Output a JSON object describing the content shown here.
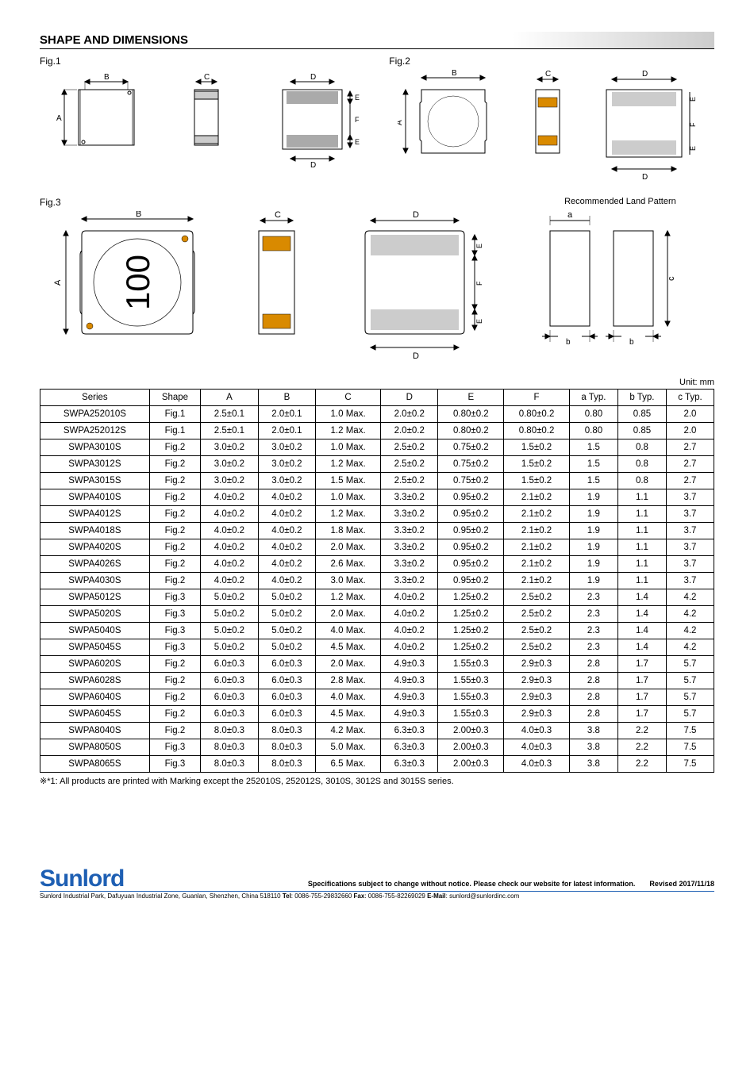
{
  "title": "SHAPE AND DIMENSIONS",
  "fig1_label": "Fig.1",
  "fig2_label": "Fig.2",
  "fig3_label": "Fig.3",
  "land_label": "Recommended Land Pattern",
  "unit_label": "Unit: mm",
  "marking_text": "100",
  "table": {
    "headers": [
      "Series",
      "Shape",
      "A",
      "B",
      "C",
      "D",
      "E",
      "F",
      "a Typ.",
      "b Typ.",
      "c Typ."
    ],
    "rows": [
      [
        "SWPA252010S",
        "Fig.1",
        "2.5±0.1",
        "2.0±0.1",
        "1.0 Max.",
        "2.0±0.2",
        "0.80±0.2",
        "0.80±0.2",
        "0.80",
        "0.85",
        "2.0"
      ],
      [
        "SWPA252012S",
        "Fig.1",
        "2.5±0.1",
        "2.0±0.1",
        "1.2 Max.",
        "2.0±0.2",
        "0.80±0.2",
        "0.80±0.2",
        "0.80",
        "0.85",
        "2.0"
      ],
      [
        "SWPA3010S",
        "Fig.2",
        "3.0±0.2",
        "3.0±0.2",
        "1.0 Max.",
        "2.5±0.2",
        "0.75±0.2",
        "1.5±0.2",
        "1.5",
        "0.8",
        "2.7"
      ],
      [
        "SWPA3012S",
        "Fig.2",
        "3.0±0.2",
        "3.0±0.2",
        "1.2 Max.",
        "2.5±0.2",
        "0.75±0.2",
        "1.5±0.2",
        "1.5",
        "0.8",
        "2.7"
      ],
      [
        "SWPA3015S",
        "Fig.2",
        "3.0±0.2",
        "3.0±0.2",
        "1.5 Max.",
        "2.5±0.2",
        "0.75±0.2",
        "1.5±0.2",
        "1.5",
        "0.8",
        "2.7"
      ],
      [
        "SWPA4010S",
        "Fig.2",
        "4.0±0.2",
        "4.0±0.2",
        "1.0 Max.",
        "3.3±0.2",
        "0.95±0.2",
        "2.1±0.2",
        "1.9",
        "1.1",
        "3.7"
      ],
      [
        "SWPA4012S",
        "Fig.2",
        "4.0±0.2",
        "4.0±0.2",
        "1.2 Max.",
        "3.3±0.2",
        "0.95±0.2",
        "2.1±0.2",
        "1.9",
        "1.1",
        "3.7"
      ],
      [
        "SWPA4018S",
        "Fig.2",
        "4.0±0.2",
        "4.0±0.2",
        "1.8 Max.",
        "3.3±0.2",
        "0.95±0.2",
        "2.1±0.2",
        "1.9",
        "1.1",
        "3.7"
      ],
      [
        "SWPA4020S",
        "Fig.2",
        "4.0±0.2",
        "4.0±0.2",
        "2.0 Max.",
        "3.3±0.2",
        "0.95±0.2",
        "2.1±0.2",
        "1.9",
        "1.1",
        "3.7"
      ],
      [
        "SWPA4026S",
        "Fig.2",
        "4.0±0.2",
        "4.0±0.2",
        "2.6 Max.",
        "3.3±0.2",
        "0.95±0.2",
        "2.1±0.2",
        "1.9",
        "1.1",
        "3.7"
      ],
      [
        "SWPA4030S",
        "Fig.2",
        "4.0±0.2",
        "4.0±0.2",
        "3.0 Max.",
        "3.3±0.2",
        "0.95±0.2",
        "2.1±0.2",
        "1.9",
        "1.1",
        "3.7"
      ],
      [
        "SWPA5012S",
        "Fig.3",
        "5.0±0.2",
        "5.0±0.2",
        "1.2 Max.",
        "4.0±0.2",
        "1.25±0.2",
        "2.5±0.2",
        "2.3",
        "1.4",
        "4.2"
      ],
      [
        "SWPA5020S",
        "Fig.3",
        "5.0±0.2",
        "5.0±0.2",
        "2.0 Max.",
        "4.0±0.2",
        "1.25±0.2",
        "2.5±0.2",
        "2.3",
        "1.4",
        "4.2"
      ],
      [
        "SWPA5040S",
        "Fig.3",
        "5.0±0.2",
        "5.0±0.2",
        "4.0 Max.",
        "4.0±0.2",
        "1.25±0.2",
        "2.5±0.2",
        "2.3",
        "1.4",
        "4.2"
      ],
      [
        "SWPA5045S",
        "Fig.3",
        "5.0±0.2",
        "5.0±0.2",
        "4.5 Max.",
        "4.0±0.2",
        "1.25±0.2",
        "2.5±0.2",
        "2.3",
        "1.4",
        "4.2"
      ],
      [
        "SWPA6020S",
        "Fig.2",
        "6.0±0.3",
        "6.0±0.3",
        "2.0 Max.",
        "4.9±0.3",
        "1.55±0.3",
        "2.9±0.3",
        "2.8",
        "1.7",
        "5.7"
      ],
      [
        "SWPA6028S",
        "Fig.2",
        "6.0±0.3",
        "6.0±0.3",
        "2.8 Max.",
        "4.9±0.3",
        "1.55±0.3",
        "2.9±0.3",
        "2.8",
        "1.7",
        "5.7"
      ],
      [
        "SWPA6040S",
        "Fig.2",
        "6.0±0.3",
        "6.0±0.3",
        "4.0 Max.",
        "4.9±0.3",
        "1.55±0.3",
        "2.9±0.3",
        "2.8",
        "1.7",
        "5.7"
      ],
      [
        "SWPA6045S",
        "Fig.2",
        "6.0±0.3",
        "6.0±0.3",
        "4.5 Max.",
        "4.9±0.3",
        "1.55±0.3",
        "2.9±0.3",
        "2.8",
        "1.7",
        "5.7"
      ],
      [
        "SWPA8040S",
        "Fig.2",
        "8.0±0.3",
        "8.0±0.3",
        "4.2 Max.",
        "6.3±0.3",
        "2.00±0.3",
        "4.0±0.3",
        "3.8",
        "2.2",
        "7.5"
      ],
      [
        "SWPA8050S",
        "Fig.3",
        "8.0±0.3",
        "8.0±0.3",
        "5.0 Max.",
        "6.3±0.3",
        "2.00±0.3",
        "4.0±0.3",
        "3.8",
        "2.2",
        "7.5"
      ],
      [
        "SWPA8065S",
        "Fig.3",
        "8.0±0.3",
        "8.0±0.3",
        "6.5 Max.",
        "6.3±0.3",
        "2.00±0.3",
        "4.0±0.3",
        "3.8",
        "2.2",
        "7.5"
      ]
    ]
  },
  "footnote": "※*1: All products are printed with Marking except the 252010S, 252012S, 3010S, 3012S and 3015S series.",
  "logo": "Sunlord",
  "footer_spec": "Specifications subject to change without notice. Please check our website for latest information.　　Revised 2017/11/18",
  "footer_addr_prefix": "Sunlord Industrial Park, Dafuyuan Industrial Zone, Guanlan, Shenzhen, China 518110 ",
  "footer_tel_label": "Tel",
  "footer_tel": ": 0086-755-29832660 ",
  "footer_fax_label": "Fax",
  "footer_fax": ": 0086-755-82269029 ",
  "footer_email_label": "E-Mail",
  "footer_email": ": sunlord@sunlordinc.com",
  "dim_labels": {
    "A": "A",
    "B": "B",
    "C": "C",
    "D": "D",
    "E": "E",
    "F": "F",
    "a": "a",
    "b": "b",
    "c": "c"
  },
  "colors": {
    "stroke": "#000000",
    "accent": "#d98a00",
    "fill_light": "#cccccc",
    "blue": "#1e5fb3"
  }
}
